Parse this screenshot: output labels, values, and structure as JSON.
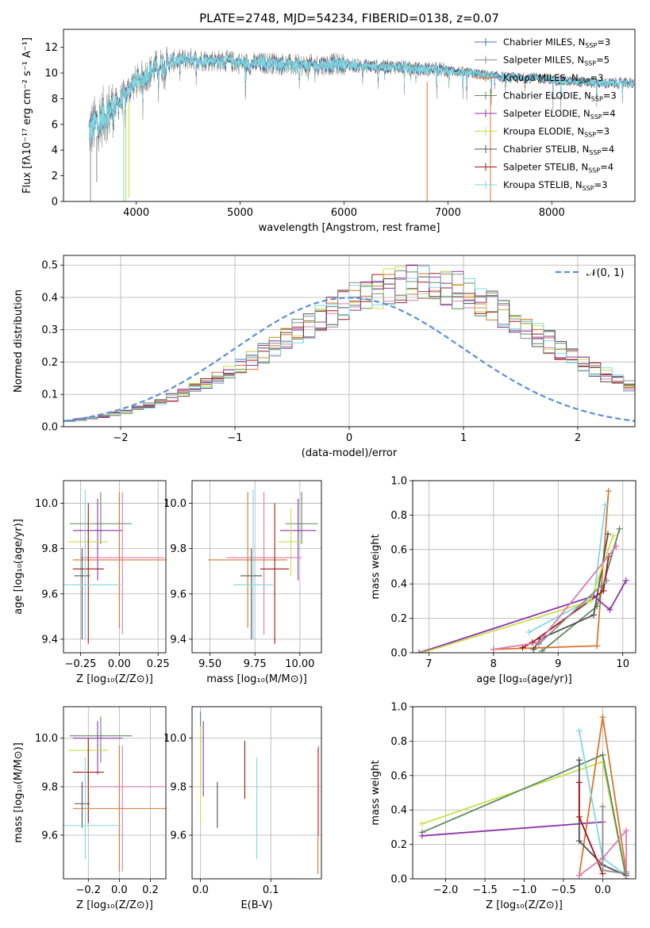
{
  "figure": {
    "title": "PLATE=2748, MJD=54234, FIBERID=0138, z=0.07"
  },
  "colors": {
    "chabrier_miles": "#4c72b0",
    "salpeter_miles": "#8c8c8c",
    "kroupa_miles": "#d6752e",
    "chabrier_elodie": "#5e8a5e",
    "salpeter_elodie": "#8c35a8",
    "kroupa_elodie": "#c8e04a",
    "chabrier_stelib": "#505050",
    "salpeter_stelib": "#a01818",
    "kroupa_stelib": "#80d8e0",
    "pink": "#e07ab0",
    "normal": "#5b8fd6"
  },
  "chart_data": [
    {
      "id": "spectrum",
      "type": "line",
      "xlabel": "wavelength [Angstrom, rest frame]",
      "ylabel": "Flux [fλ10⁻¹⁷ erg cm⁻² s⁻¹ A⁻¹]",
      "xlim": [
        3300,
        8800
      ],
      "ylim": [
        0,
        13.4
      ],
      "xticks": [
        4000,
        5000,
        6000,
        7000,
        8000
      ],
      "yticks": [
        0,
        2,
        4,
        6,
        8,
        10,
        12
      ],
      "legend_position": "top-right",
      "observed_anchor_x": [
        3550,
        3700,
        3850,
        3950,
        4050,
        4200,
        4350,
        4500,
        4700,
        4900,
        5100,
        5300,
        5500,
        5700,
        5900,
        6100,
        6300,
        6500,
        6700,
        6900,
        7100,
        7300,
        7500,
        7700,
        7900,
        8100,
        8300,
        8500,
        8750
      ],
      "observed_anchor_y": [
        5.5,
        6.8,
        7.8,
        9.0,
        9.6,
        10.5,
        10.9,
        11.1,
        11.0,
        10.9,
        10.7,
        10.8,
        10.6,
        10.6,
        10.7,
        10.6,
        10.5,
        10.5,
        10.3,
        10.3,
        10.1,
        9.9,
        9.7,
        9.6,
        9.6,
        9.4,
        9.3,
        9.2,
        9.2
      ],
      "series": [
        {
          "name": "Chabrier MILES, N_SSP=3",
          "color_key": "chabrier_miles"
        },
        {
          "name": "Salpeter MILES, N_SSP=5",
          "color_key": "salpeter_miles"
        },
        {
          "name": "Kroupa MILES, N_SSP=3",
          "color_key": "kroupa_miles"
        },
        {
          "name": "Chabrier ELODIE, N_SSP=3",
          "color_key": "chabrier_elodie"
        },
        {
          "name": "Salpeter ELODIE, N_SSP=4",
          "color_key": "salpeter_elodie"
        },
        {
          "name": "Kroupa ELODIE, N_SSP=3",
          "color_key": "kroupa_elodie"
        },
        {
          "name": "Chabrier STELIB, N_SSP=4",
          "color_key": "chabrier_stelib"
        },
        {
          "name": "Salpeter STELIB, N_SSP=4",
          "color_key": "salpeter_stelib"
        },
        {
          "name": "Kroupa STELIB, N_SSP=3",
          "color_key": "kroupa_stelib"
        }
      ]
    },
    {
      "id": "residuals",
      "type": "line",
      "xlabel": "(data-model)/error",
      "ylabel": "Normed distribution",
      "xlim": [
        -2.5,
        2.5
      ],
      "ylim": [
        0,
        0.53
      ],
      "xticks": [
        -2,
        -1,
        0,
        1,
        2
      ],
      "yticks": [
        0.0,
        0.1,
        0.2,
        0.3,
        0.4,
        0.5
      ],
      "grid": true,
      "legend_position": "top-right",
      "bin_width": 0.1,
      "bin_start": -2.5,
      "normal_label": "𝒩(0, 1)",
      "hist_base": [
        0.018,
        0.022,
        0.027,
        0.033,
        0.04,
        0.048,
        0.056,
        0.066,
        0.077,
        0.09,
        0.103,
        0.118,
        0.133,
        0.15,
        0.168,
        0.187,
        0.206,
        0.227,
        0.248,
        0.27,
        0.292,
        0.314,
        0.335,
        0.356,
        0.376,
        0.394,
        0.41,
        0.424,
        0.435,
        0.444,
        0.448,
        0.445,
        0.44,
        0.434,
        0.424,
        0.409,
        0.392,
        0.373,
        0.352,
        0.33,
        0.307,
        0.284,
        0.262,
        0.24,
        0.218,
        0.198,
        0.178,
        0.16,
        0.143,
        0.127,
        0.112,
        0.098,
        0.086,
        0.075,
        0.064,
        0.055,
        0.047,
        0.04,
        0.034,
        0.029,
        0.025
      ]
    },
    {
      "id": "age_vs_z",
      "type": "scatter",
      "xlabel": "Z [log₁₀(Z/Z⊙)]",
      "ylabel": "age  [log₁₀(age/yr)]",
      "xlim": [
        -0.36,
        0.3
      ],
      "ylim": [
        9.34,
        10.1
      ],
      "xticks": [
        -0.25,
        0.0,
        0.25
      ],
      "xticklabels": [
        "−0.25",
        "0.00",
        "0.25"
      ],
      "yticks": [
        9.4,
        9.6,
        9.8,
        10.0
      ],
      "grid": true,
      "errorbars": [
        {
          "color_key": "chabrier_elodie",
          "x": -0.12,
          "y": 9.91,
          "xerr": 0.2,
          "y_range": [
            9.82,
            10.05
          ]
        },
        {
          "color_key": "salpeter_elodie",
          "x": -0.14,
          "y": 9.88,
          "xerr": 0.16,
          "y_range": [
            9.66,
            10.02
          ]
        },
        {
          "color_key": "kroupa_elodie",
          "x": -0.2,
          "y": 9.83,
          "xerr": 0.13,
          "y_range": [
            9.68,
            9.98
          ]
        },
        {
          "color_key": "pink",
          "x": 0.02,
          "y": 9.76,
          "xerr": 0.27,
          "y_range": [
            9.42,
            10.05
          ]
        },
        {
          "color_key": "kroupa_miles",
          "x": 0.0,
          "y": 9.75,
          "xerr": 0.3,
          "y_range": [
            9.45,
            10.05
          ]
        },
        {
          "color_key": "salpeter_stelib",
          "x": -0.2,
          "y": 9.71,
          "xerr": 0.1,
          "y_range": [
            9.38,
            10.0
          ]
        },
        {
          "color_key": "chabrier_stelib",
          "x": -0.24,
          "y": 9.68,
          "xerr": 0.05,
          "y_range": [
            9.4,
            9.8
          ]
        },
        {
          "color_key": "kroupa_stelib",
          "x": -0.22,
          "y": 9.64,
          "xerr": 0.23,
          "y_range": [
            9.4,
            10.06
          ]
        }
      ]
    },
    {
      "id": "age_vs_mass",
      "type": "scatter",
      "xlabel": "mass [log₁₀(M/M⊙)]",
      "ylabel": "",
      "xlim": [
        9.4,
        10.12
      ],
      "ylim": [
        9.34,
        10.1
      ],
      "xticks": [
        9.5,
        9.75,
        10.0
      ],
      "xticklabels": [
        "9.50",
        "9.75",
        "10.00"
      ],
      "yticks": [
        9.4,
        9.6,
        9.8,
        10.0
      ],
      "grid": true,
      "errorbars": [
        {
          "color_key": "chabrier_elodie",
          "x": 10.01,
          "y": 9.91,
          "xerr": 0.09,
          "y_range": [
            9.82,
            10.05
          ]
        },
        {
          "color_key": "salpeter_elodie",
          "x": 9.99,
          "y": 9.88,
          "xerr": 0.1,
          "y_range": [
            9.66,
            10.02
          ]
        },
        {
          "color_key": "kroupa_elodie",
          "x": 9.95,
          "y": 9.83,
          "xerr": 0.07,
          "y_range": [
            9.68,
            9.98
          ]
        },
        {
          "color_key": "pink",
          "x": 9.8,
          "y": 9.76,
          "xerr": 0.21,
          "y_range": [
            9.42,
            10.05
          ]
        },
        {
          "color_key": "kroupa_miles",
          "x": 9.71,
          "y": 9.75,
          "xerr": 0.22,
          "y_range": [
            9.45,
            10.05
          ]
        },
        {
          "color_key": "salpeter_stelib",
          "x": 9.86,
          "y": 9.71,
          "xerr": 0.08,
          "y_range": [
            9.38,
            10.0
          ]
        },
        {
          "color_key": "chabrier_stelib",
          "x": 9.73,
          "y": 9.68,
          "xerr": 0.06,
          "y_range": [
            9.4,
            9.8
          ]
        },
        {
          "color_key": "kroupa_stelib",
          "x": 9.74,
          "y": 9.64,
          "xerr": 0.11,
          "y_range": [
            9.4,
            10.06
          ]
        }
      ]
    },
    {
      "id": "weight_vs_age",
      "type": "line",
      "xlabel": "age  [log₁₀(age/yr)]",
      "ylabel": "mass weight",
      "xlim": [
        6.75,
        10.2
      ],
      "ylim": [
        0,
        1.0
      ],
      "xticks": [
        7,
        8,
        9,
        10
      ],
      "yticks": [
        0.0,
        0.2,
        0.4,
        0.6,
        0.8,
        1.0
      ],
      "grid": true,
      "series": [
        {
          "color_key": "kroupa_miles",
          "x": [
            8.0,
            9.6,
            9.78
          ],
          "y": [
            0.02,
            0.04,
            0.94
          ]
        },
        {
          "color_key": "kroupa_stelib",
          "x": [
            8.55,
            9.55,
            9.73
          ],
          "y": [
            0.12,
            0.32,
            0.86
          ]
        },
        {
          "color_key": "chabrier_elodie",
          "x": [
            8.75,
            9.6,
            9.95
          ],
          "y": [
            0.01,
            0.27,
            0.72
          ]
        },
        {
          "color_key": "chabrier_stelib",
          "x": [
            8.62,
            8.72,
            9.55,
            9.77
          ],
          "y": [
            0.02,
            0.08,
            0.22,
            0.69
          ]
        },
        {
          "color_key": "salpeter_stelib",
          "x": [
            8.45,
            8.6,
            9.7,
            9.78
          ],
          "y": [
            0.03,
            0.06,
            0.36,
            0.56
          ]
        },
        {
          "color_key": "salpeter_elodie",
          "x": [
            6.85,
            9.55,
            9.8,
            10.05
          ],
          "y": [
            0.0,
            0.33,
            0.25,
            0.42
          ]
        },
        {
          "color_key": "kroupa_elodie",
          "x": [
            6.9,
            9.5,
            9.85
          ],
          "y": [
            0.0,
            0.3,
            0.68
          ]
        },
        {
          "color_key": "pink",
          "x": [
            8.0,
            8.7,
            9.9
          ],
          "y": [
            0.02,
            0.06,
            0.62
          ]
        },
        {
          "color_key": "salpeter_miles",
          "x": [
            8.7,
            9.75
          ],
          "y": [
            0.05,
            0.42
          ]
        }
      ]
    },
    {
      "id": "mass_vs_z",
      "type": "scatter",
      "xlabel": "Z [log₁₀(Z/Z⊙)]",
      "ylabel": "mass [log₁₀(M/M⊙)]",
      "xlim": [
        -0.36,
        0.3
      ],
      "ylim": [
        9.42,
        10.13
      ],
      "xticks": [
        -0.2,
        0.0,
        0.2
      ],
      "xticklabels": [
        "−0.2",
        "0.0",
        "0.2"
      ],
      "yticks": [
        9.6,
        9.8,
        10.0
      ],
      "grid": true,
      "errorbars": [
        {
          "color_key": "chabrier_elodie",
          "x": -0.12,
          "y": 10.01,
          "xerr": 0.2,
          "y_range": [
            9.9,
            10.09
          ]
        },
        {
          "color_key": "salpeter_elodie",
          "x": -0.14,
          "y": 10.0,
          "xerr": 0.16,
          "y_range": [
            9.85,
            10.07
          ]
        },
        {
          "color_key": "kroupa_elodie",
          "x": -0.2,
          "y": 9.95,
          "xerr": 0.13,
          "y_range": [
            9.66,
            10.0
          ]
        },
        {
          "color_key": "salpeter_stelib",
          "x": -0.2,
          "y": 9.86,
          "xerr": 0.1,
          "y_range": [
            9.65,
            10.0
          ]
        },
        {
          "color_key": "pink",
          "x": 0.02,
          "y": 9.8,
          "xerr": 0.27,
          "y_range": [
            9.45,
            9.97
          ]
        },
        {
          "color_key": "chabrier_stelib",
          "x": -0.24,
          "y": 9.73,
          "xerr": 0.05,
          "y_range": [
            9.63,
            9.82
          ]
        },
        {
          "color_key": "kroupa_miles",
          "x": 0.0,
          "y": 9.71,
          "xerr": 0.3,
          "y_range": [
            9.45,
            9.97
          ]
        },
        {
          "color_key": "kroupa_stelib",
          "x": -0.22,
          "y": 9.64,
          "xerr": 0.23,
          "y_range": [
            9.5,
            9.92
          ]
        }
      ]
    },
    {
      "id": "mass_vs_ebv",
      "type": "scatter",
      "xlabel": "E(B-V)",
      "ylabel": "",
      "xlim": [
        -0.012,
        0.172
      ],
      "ylim": [
        9.42,
        10.13
      ],
      "xticks": [
        0.0,
        0.1
      ],
      "xticklabels": [
        "0.0",
        "0.1"
      ],
      "yticks": [
        9.6,
        9.8,
        10.0
      ],
      "grid": true,
      "errorbars": [
        {
          "color_key": "chabrier_elodie",
          "x": 0.0,
          "y": 10.0,
          "y_range": [
            9.8,
            10.11
          ]
        },
        {
          "color_key": "kroupa_elodie",
          "x": 0.0,
          "y": 9.9,
          "y_range": [
            9.65,
            10.05
          ]
        },
        {
          "color_key": "salpeter_elodie",
          "x": 0.004,
          "y": 9.9,
          "y_range": [
            9.76,
            10.07
          ]
        },
        {
          "color_key": "chabrier_stelib",
          "x": 0.024,
          "y": 9.72,
          "y_range": [
            9.63,
            9.82
          ]
        },
        {
          "color_key": "salpeter_stelib",
          "x": 0.063,
          "y": 9.87,
          "y_range": [
            9.75,
            9.99
          ]
        },
        {
          "color_key": "kroupa_stelib",
          "x": 0.08,
          "y": 9.7,
          "y_range": [
            9.5,
            9.92
          ]
        },
        {
          "color_key": "kroupa_miles",
          "x": 0.167,
          "y": 9.71,
          "y_range": [
            9.44,
            9.96
          ]
        },
        {
          "color_key": "pink",
          "x": 0.168,
          "y": 9.78,
          "y_range": [
            9.6,
            9.97
          ]
        }
      ]
    },
    {
      "id": "weight_vs_z",
      "type": "line",
      "xlabel": "Z [log₁₀(Z/Z⊙)]",
      "ylabel": "mass weight",
      "xlim": [
        -2.42,
        0.42
      ],
      "ylim": [
        0,
        1.0
      ],
      "xticks": [
        -2.0,
        -1.5,
        -1.0,
        -0.5,
        0.0
      ],
      "xticklabels": [
        "−2.0",
        "−1.5",
        "−1.0",
        "−0.5",
        "0.0"
      ],
      "yticks": [
        0.0,
        0.2,
        0.4,
        0.6,
        0.8,
        1.0
      ],
      "grid": true,
      "series": [
        {
          "color_key": "kroupa_elodie",
          "x": [
            -2.3,
            0.0,
            0.3
          ],
          "y": [
            0.32,
            0.68,
            0.0
          ]
        },
        {
          "color_key": "chabrier_elodie",
          "x": [
            -2.3,
            0.0,
            0.3
          ],
          "y": [
            0.27,
            0.72,
            0.0
          ]
        },
        {
          "color_key": "salpeter_elodie",
          "x": [
            -2.3,
            0.0
          ],
          "y": [
            0.25,
            0.33
          ]
        },
        {
          "color_key": "kroupa_miles",
          "x": [
            -0.3,
            0.0,
            0.3
          ],
          "y": [
            0.02,
            0.94,
            0.04
          ]
        },
        {
          "color_key": "kroupa_stelib",
          "x": [
            -0.3,
            0.0,
            0.3
          ],
          "y": [
            0.86,
            0.12,
            0.02
          ]
        },
        {
          "color_key": "chabrier_stelib",
          "x": [
            -0.3,
            -0.3,
            0.0,
            0.3
          ],
          "y": [
            0.69,
            0.22,
            0.08,
            0.02
          ]
        },
        {
          "color_key": "salpeter_stelib",
          "x": [
            -0.3,
            -0.3,
            0.0
          ],
          "y": [
            0.56,
            0.36,
            0.03
          ]
        },
        {
          "color_key": "pink",
          "x": [
            -0.3,
            0.0,
            0.3,
            0.3
          ],
          "y": [
            0.02,
            0.12,
            0.28,
            0.0
          ]
        },
        {
          "color_key": "salpeter_miles",
          "x": [
            0.0,
            0.0,
            0.3
          ],
          "y": [
            0.42,
            0.05,
            0.03
          ]
        }
      ]
    }
  ]
}
